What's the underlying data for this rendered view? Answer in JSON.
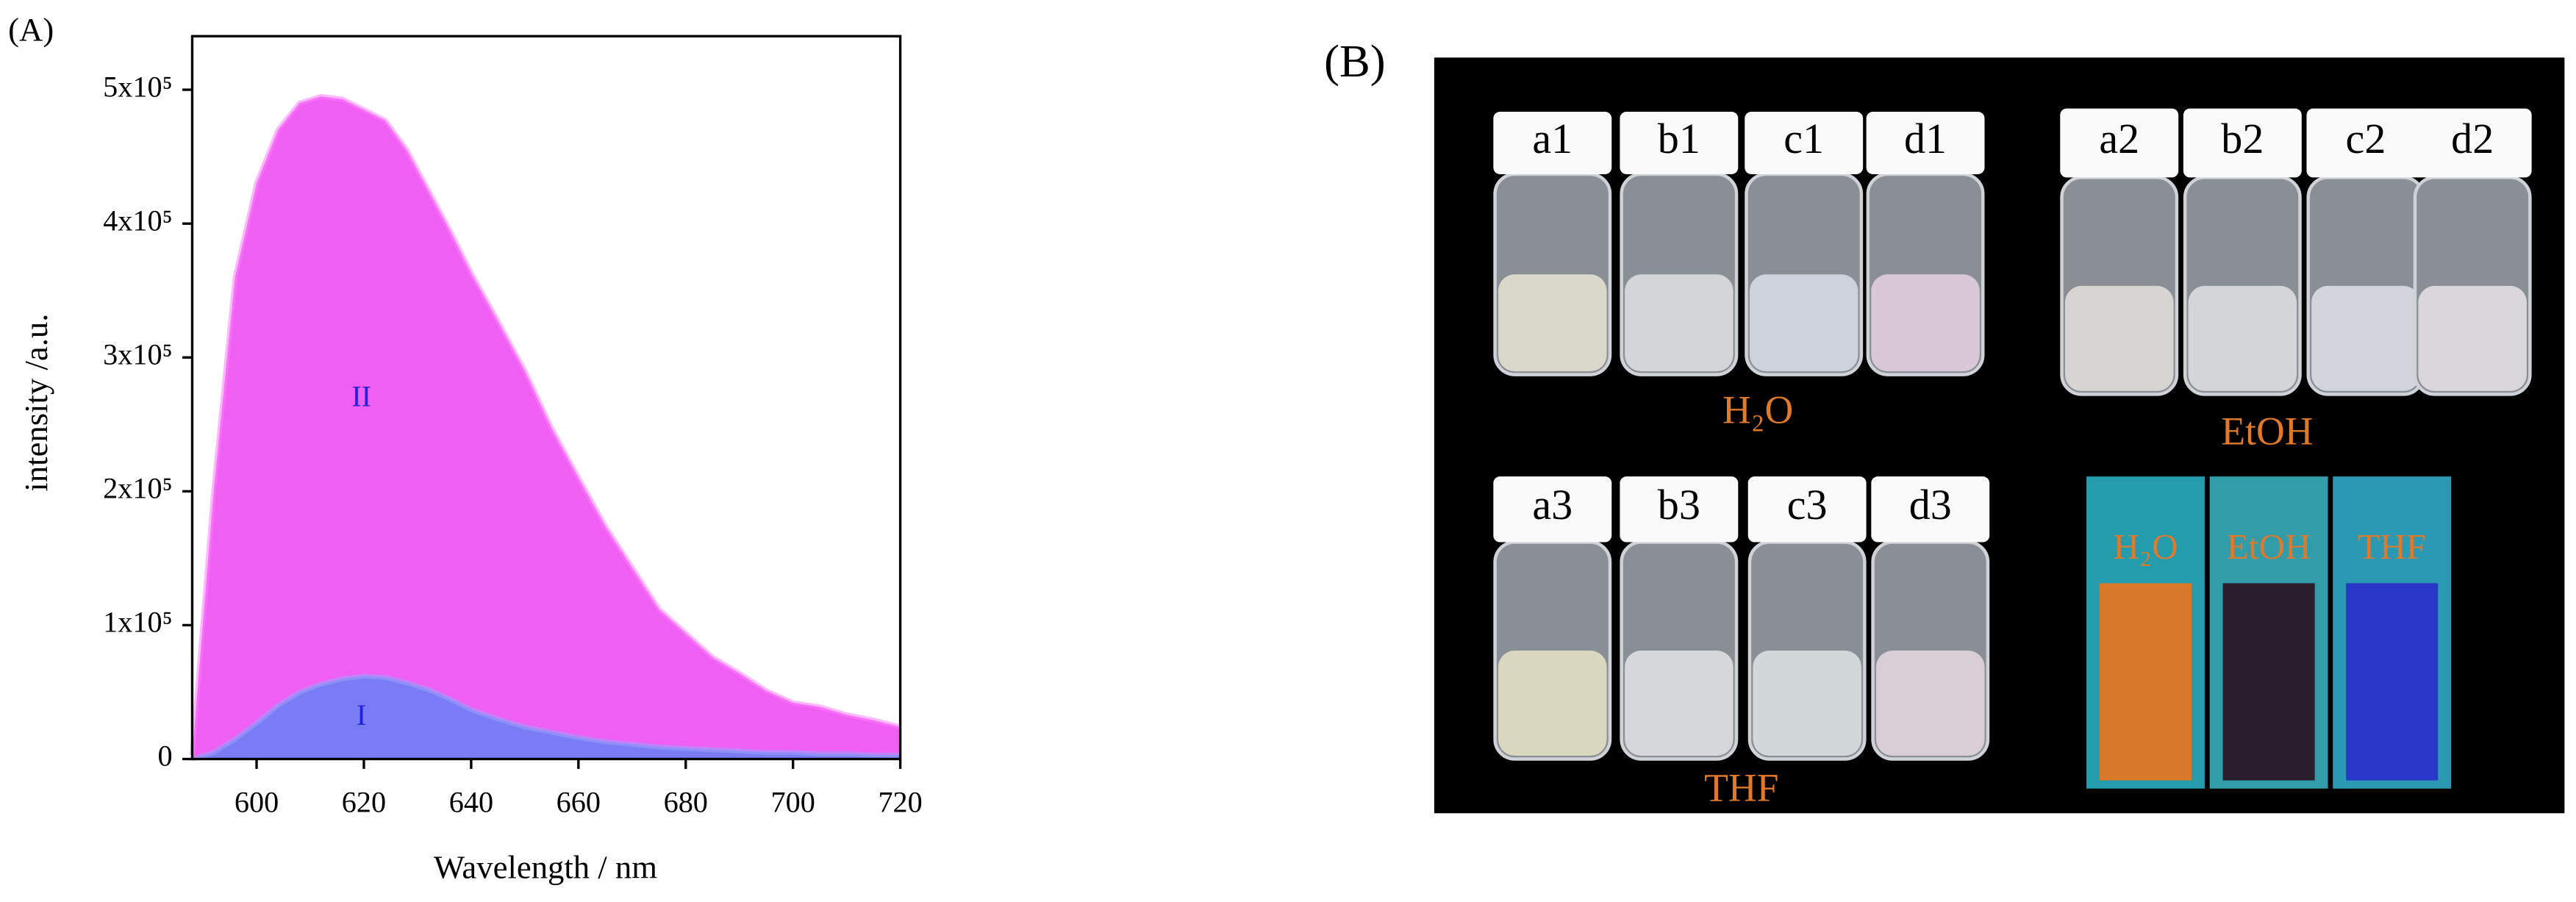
{
  "panels": [
    "(A)",
    "(B)"
  ],
  "chart_data": {
    "type": "area",
    "xlabel": "Wavelength / nm",
    "ylabel": "intensity /a.u.",
    "x": [
      588,
      592,
      596,
      600,
      604,
      608,
      612,
      616,
      620,
      624,
      628,
      632,
      636,
      640,
      645,
      650,
      655,
      660,
      665,
      670,
      675,
      680,
      685,
      690,
      695,
      700,
      705,
      710,
      715,
      720
    ],
    "series": [
      {
        "name": "II",
        "color": "#ee5ff2",
        "values": [
          3000,
          200000,
          360000,
          430000,
          470000,
          490000,
          495000,
          493000,
          485000,
          477000,
          455000,
          425000,
          395000,
          363000,
          327000,
          290000,
          247000,
          210000,
          174000,
          143000,
          112000,
          94000,
          76000,
          64000,
          51000,
          42000,
          39000,
          33000,
          29000,
          24000
        ]
      },
      {
        "name": "I",
        "color": "#7a7cf5",
        "values": [
          0,
          5000,
          15000,
          27000,
          40000,
          50000,
          56000,
          60000,
          62000,
          61000,
          57000,
          52000,
          45000,
          37000,
          30000,
          24000,
          20000,
          16000,
          13000,
          11000,
          9000,
          8000,
          7000,
          6000,
          5000,
          5000,
          4000,
          4000,
          3000,
          3000
        ]
      }
    ],
    "annotations": [
      "II",
      "I"
    ],
    "xlim": [
      588,
      720
    ],
    "xticks": [
      600,
      620,
      640,
      660,
      680,
      700,
      720
    ],
    "ylim": [
      0,
      540000
    ],
    "yticks": [
      0,
      {
        "value": 100000,
        "label": "1x10⁵"
      },
      {
        "value": 200000,
        "label": "2x10⁵"
      },
      {
        "value": 300000,
        "label": "3x10⁵"
      },
      {
        "value": 400000,
        "label": "4x10⁵"
      },
      {
        "value": 500000,
        "label": "5x10⁵"
      }
    ]
  },
  "photo": {
    "vials": [
      [
        "a1",
        "b1",
        "c1",
        "d1"
      ],
      [
        "a2",
        "b2",
        "c2",
        "d2"
      ],
      [
        "a3",
        "b3",
        "c3",
        "d3"
      ]
    ],
    "solvents": [
      "H₂O",
      "EtOH",
      "THF"
    ],
    "cuvettes": [
      "H₂O",
      "EtOH",
      "THF"
    ]
  }
}
